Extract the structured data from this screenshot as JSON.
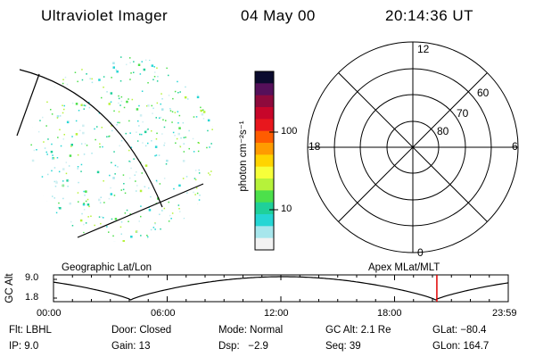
{
  "header": {
    "instrument": "Ultraviolet Imager",
    "date": "04 May 00",
    "time": "20:14:36 UT"
  },
  "colorbar": {
    "unit_label": "photon cm⁻²s⁻¹",
    "ticks": [
      "100",
      "10"
    ],
    "scale": "log",
    "colors": [
      "#0b0b2e",
      "#55105a",
      "#8e0a3c",
      "#c7062a",
      "#e8171d",
      "#ff5c00",
      "#ff9b00",
      "#ffd400",
      "#f6ff3a",
      "#b6f23a",
      "#4ce04b",
      "#1fd09a",
      "#25d6d4",
      "#a7e6ec",
      "#f2f2f2"
    ]
  },
  "polar": {
    "mlt_labels": [
      "12",
      "18",
      "6",
      "0"
    ],
    "lat_labels": [
      "60",
      "70",
      "80"
    ]
  },
  "orbit": {
    "left_label": "Geographic Lat/Lon",
    "right_label": "Apex MLat/MLT",
    "y_axis_label": "GC Alt",
    "y_ticks": [
      "9.0",
      "1.8"
    ],
    "x_ticks": [
      "00:00",
      "06:00",
      "12:00",
      "18:00",
      "23:59"
    ],
    "current_time_fraction": 0.843,
    "marker_color": "#e00000"
  },
  "info": {
    "row1": {
      "filter": "Flt: LBHL",
      "door": "Door: Closed",
      "mode": "Mode: Normal",
      "gc_alt": "GC Alt: 2.1 Re",
      "glat": "GLat: −80.4"
    },
    "row2": {
      "ip": "IP: 9.0",
      "gain": "Gain: 13",
      "dsp": "Dsp:   −2.9",
      "seq": "Seq: 39",
      "glon": "GLon: 164.7"
    }
  }
}
